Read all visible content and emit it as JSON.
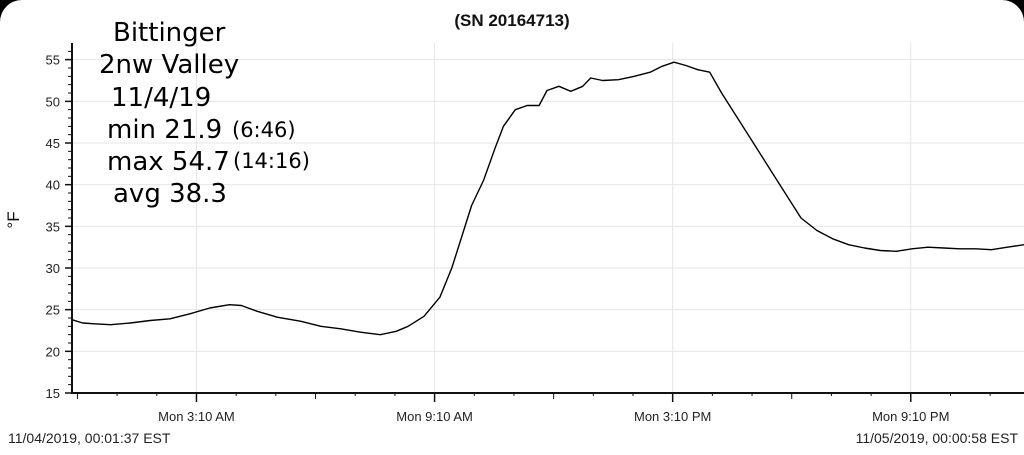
{
  "chart_data": {
    "type": "line",
    "title": "(SN 20164713)",
    "ylabel": "°F",
    "xlabel": "",
    "ylim": [
      15,
      57
    ],
    "yticks": [
      15,
      20,
      25,
      30,
      35,
      40,
      45,
      50,
      55
    ],
    "x_range_hours": [
      0.03,
      24.02
    ],
    "x_ticks": [
      {
        "hour": 3.1667,
        "label": "Mon 3:10 AM"
      },
      {
        "hour": 9.1667,
        "label": "Mon 9:10 AM"
      },
      {
        "hour": 15.1667,
        "label": "Mon 3:10 PM"
      },
      {
        "hour": 21.1667,
        "label": "Mon 9:10 PM"
      }
    ],
    "grid": true,
    "series": [
      {
        "color": "#000000",
        "points": [
          [
            0.03,
            23.8
          ],
          [
            0.3,
            23.4
          ],
          [
            0.6,
            23.3
          ],
          [
            1.0,
            23.2
          ],
          [
            1.5,
            23.4
          ],
          [
            2.0,
            23.7
          ],
          [
            2.5,
            23.9
          ],
          [
            3.0,
            24.5
          ],
          [
            3.5,
            25.2
          ],
          [
            4.0,
            25.6
          ],
          [
            4.3,
            25.5
          ],
          [
            4.7,
            24.8
          ],
          [
            5.2,
            24.1
          ],
          [
            5.8,
            23.6
          ],
          [
            6.3,
            23.0
          ],
          [
            6.8,
            22.7
          ],
          [
            7.3,
            22.3
          ],
          [
            7.8,
            22.0
          ],
          [
            8.2,
            22.4
          ],
          [
            8.5,
            23.0
          ],
          [
            8.9,
            24.2
          ],
          [
            9.3,
            26.5
          ],
          [
            9.6,
            30.0
          ],
          [
            9.9,
            34.5
          ],
          [
            10.1,
            37.5
          ],
          [
            10.4,
            40.5
          ],
          [
            10.7,
            44.5
          ],
          [
            10.9,
            47.0
          ],
          [
            11.2,
            49.0
          ],
          [
            11.5,
            49.5
          ],
          [
            11.8,
            49.5
          ],
          [
            12.0,
            51.3
          ],
          [
            12.3,
            51.8
          ],
          [
            12.6,
            51.2
          ],
          [
            12.9,
            51.8
          ],
          [
            13.1,
            52.8
          ],
          [
            13.4,
            52.5
          ],
          [
            13.8,
            52.6
          ],
          [
            14.2,
            53.0
          ],
          [
            14.6,
            53.5
          ],
          [
            14.9,
            54.2
          ],
          [
            15.2,
            54.7
          ],
          [
            15.5,
            54.3
          ],
          [
            15.8,
            53.8
          ],
          [
            16.1,
            53.5
          ],
          [
            16.4,
            51.0
          ],
          [
            16.8,
            48.0
          ],
          [
            17.2,
            45.0
          ],
          [
            17.6,
            42.0
          ],
          [
            18.0,
            39.0
          ],
          [
            18.4,
            36.0
          ],
          [
            18.8,
            34.5
          ],
          [
            19.2,
            33.5
          ],
          [
            19.6,
            32.8
          ],
          [
            20.0,
            32.4
          ],
          [
            20.4,
            32.1
          ],
          [
            20.8,
            32.0
          ],
          [
            21.2,
            32.3
          ],
          [
            21.6,
            32.5
          ],
          [
            22.0,
            32.4
          ],
          [
            22.4,
            32.3
          ],
          [
            22.8,
            32.3
          ],
          [
            23.2,
            32.2
          ],
          [
            23.6,
            32.5
          ],
          [
            24.02,
            32.8
          ]
        ]
      }
    ]
  },
  "annotations": {
    "station": "Bittinger",
    "location": "2nw Valley",
    "date": "11/4/19",
    "min_label": "min 21.9",
    "min_time": "(6:46)",
    "max_label": "max 54.7",
    "max_time": "(14:16)",
    "avg_label": "avg 38.3"
  },
  "footer": {
    "start": "11/04/2019, 00:01:37 EST",
    "end": "11/05/2019, 00:00:58 EST"
  }
}
